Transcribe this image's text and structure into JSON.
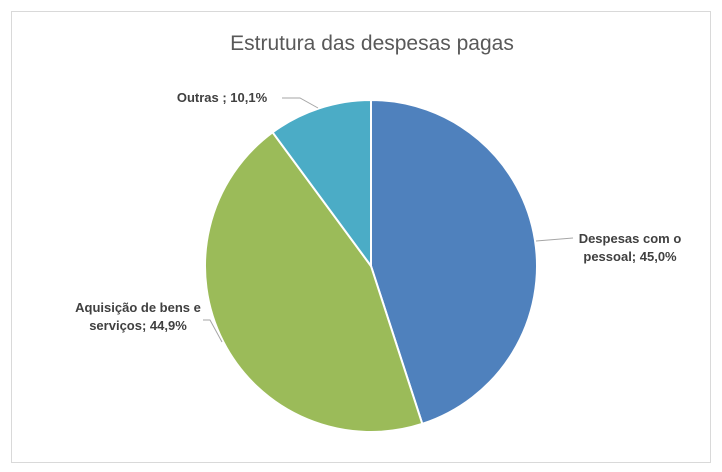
{
  "chart_data": {
    "type": "pie",
    "title": "Estrutura das despesas pagas",
    "slices": [
      {
        "name": "Despesas com o pessoal",
        "value": 45.0,
        "color": "#4F81BD",
        "label_lines": [
          "Despesas com o",
          "pessoal; 45,0%"
        ]
      },
      {
        "name": "Aquisição de bens e serviços",
        "value": 44.9,
        "color": "#9BBB59",
        "label_lines": [
          "Aquisição de bens e",
          "serviços; 44,9%"
        ]
      },
      {
        "name": "Outras",
        "value": 10.1,
        "color": "#4BACC6",
        "label_lines": [
          "Outras ; 10,1%"
        ]
      }
    ],
    "start": "12 o'clock",
    "direction": "clockwise",
    "legend": "none"
  }
}
